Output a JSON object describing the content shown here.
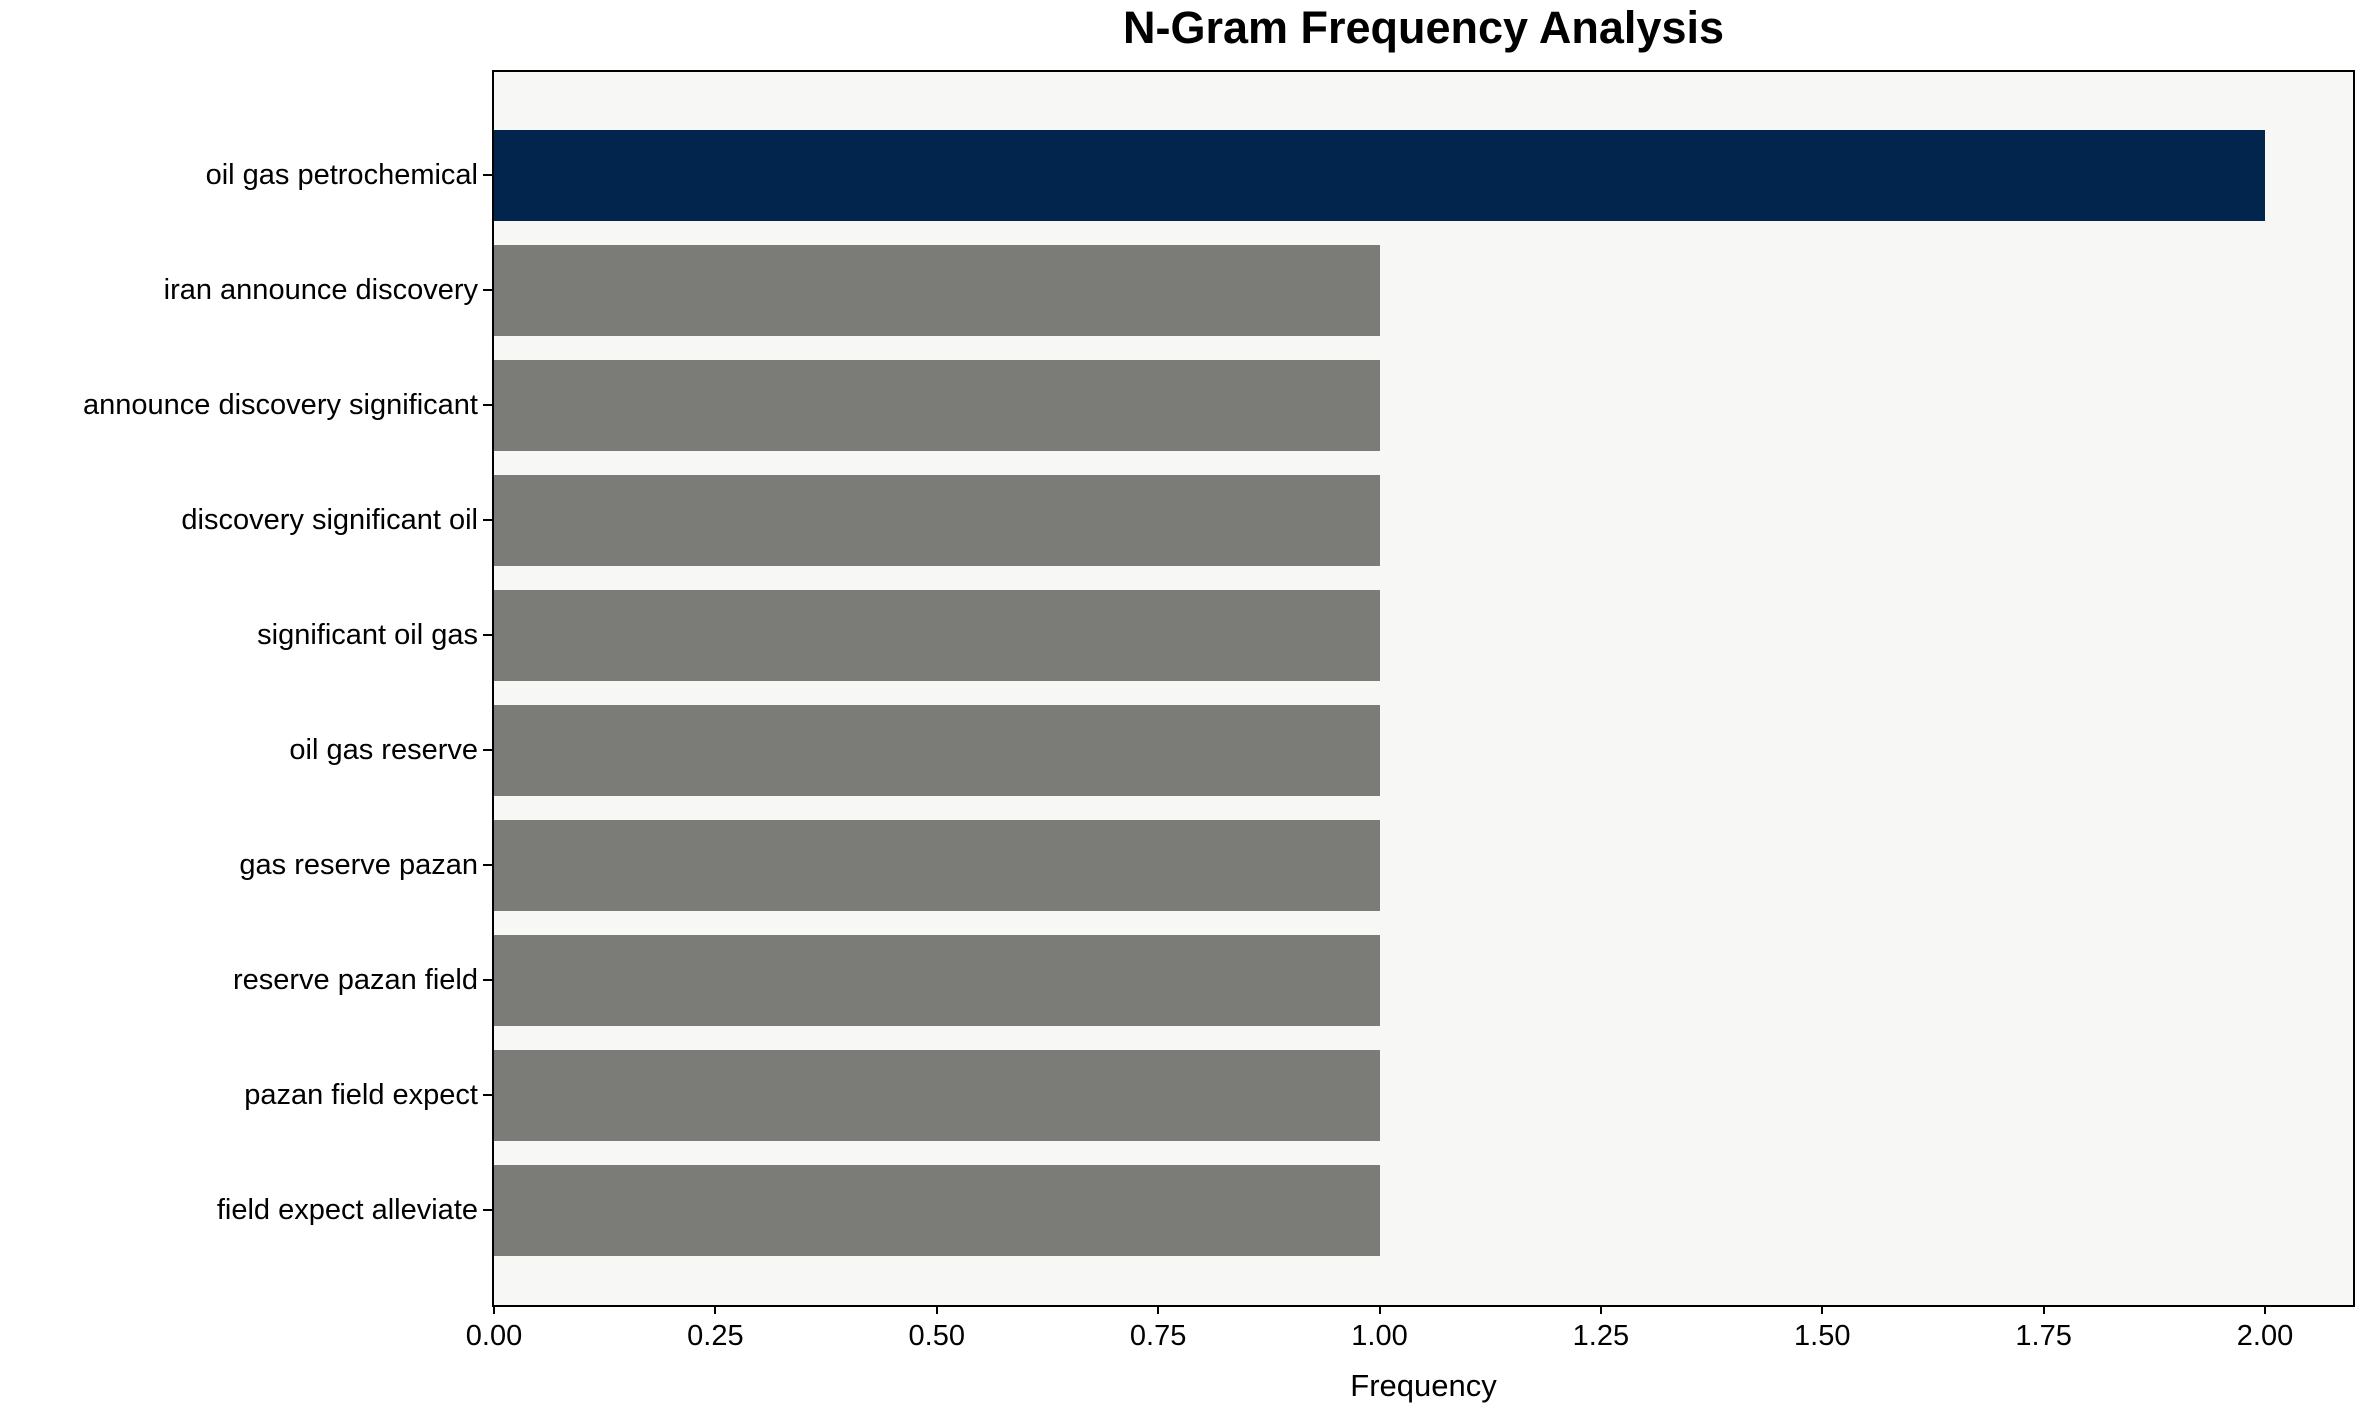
{
  "chart_data": {
    "type": "bar",
    "orientation": "horizontal",
    "title": "N-Gram Frequency Analysis",
    "xlabel": "Frequency",
    "ylabel": "",
    "categories": [
      "oil gas petrochemical",
      "iran announce discovery",
      "announce discovery significant",
      "discovery significant oil",
      "significant oil gas",
      "oil gas reserve",
      "gas reserve pazan",
      "reserve pazan field",
      "pazan field expect",
      "field expect alleviate"
    ],
    "values": [
      2.0,
      1.0,
      1.0,
      1.0,
      1.0,
      1.0,
      1.0,
      1.0,
      1.0,
      1.0
    ],
    "bar_colors": [
      "#02254e",
      "#7b7b77",
      "#7b7b77",
      "#7b7b77",
      "#7b7b77",
      "#7b7b77",
      "#7b7b77",
      "#7b7b77",
      "#7b7b77",
      "#7b7b77"
    ],
    "x_ticks": [
      "0.00",
      "0.25",
      "0.50",
      "0.75",
      "1.00",
      "1.25",
      "1.50",
      "1.75",
      "2.00"
    ],
    "x_tick_values": [
      0.0,
      0.25,
      0.5,
      0.75,
      1.0,
      1.25,
      1.5,
      1.75,
      2.0
    ],
    "xlim": [
      0,
      2.1
    ],
    "grid": false,
    "legend": null,
    "colors": {
      "highlight_bar": "#02254e",
      "default_bar": "#7b7b77",
      "plot_background": "#f7f7f6",
      "figure_background": "#ffffff",
      "spine": "#000000",
      "text": "#000000"
    }
  }
}
